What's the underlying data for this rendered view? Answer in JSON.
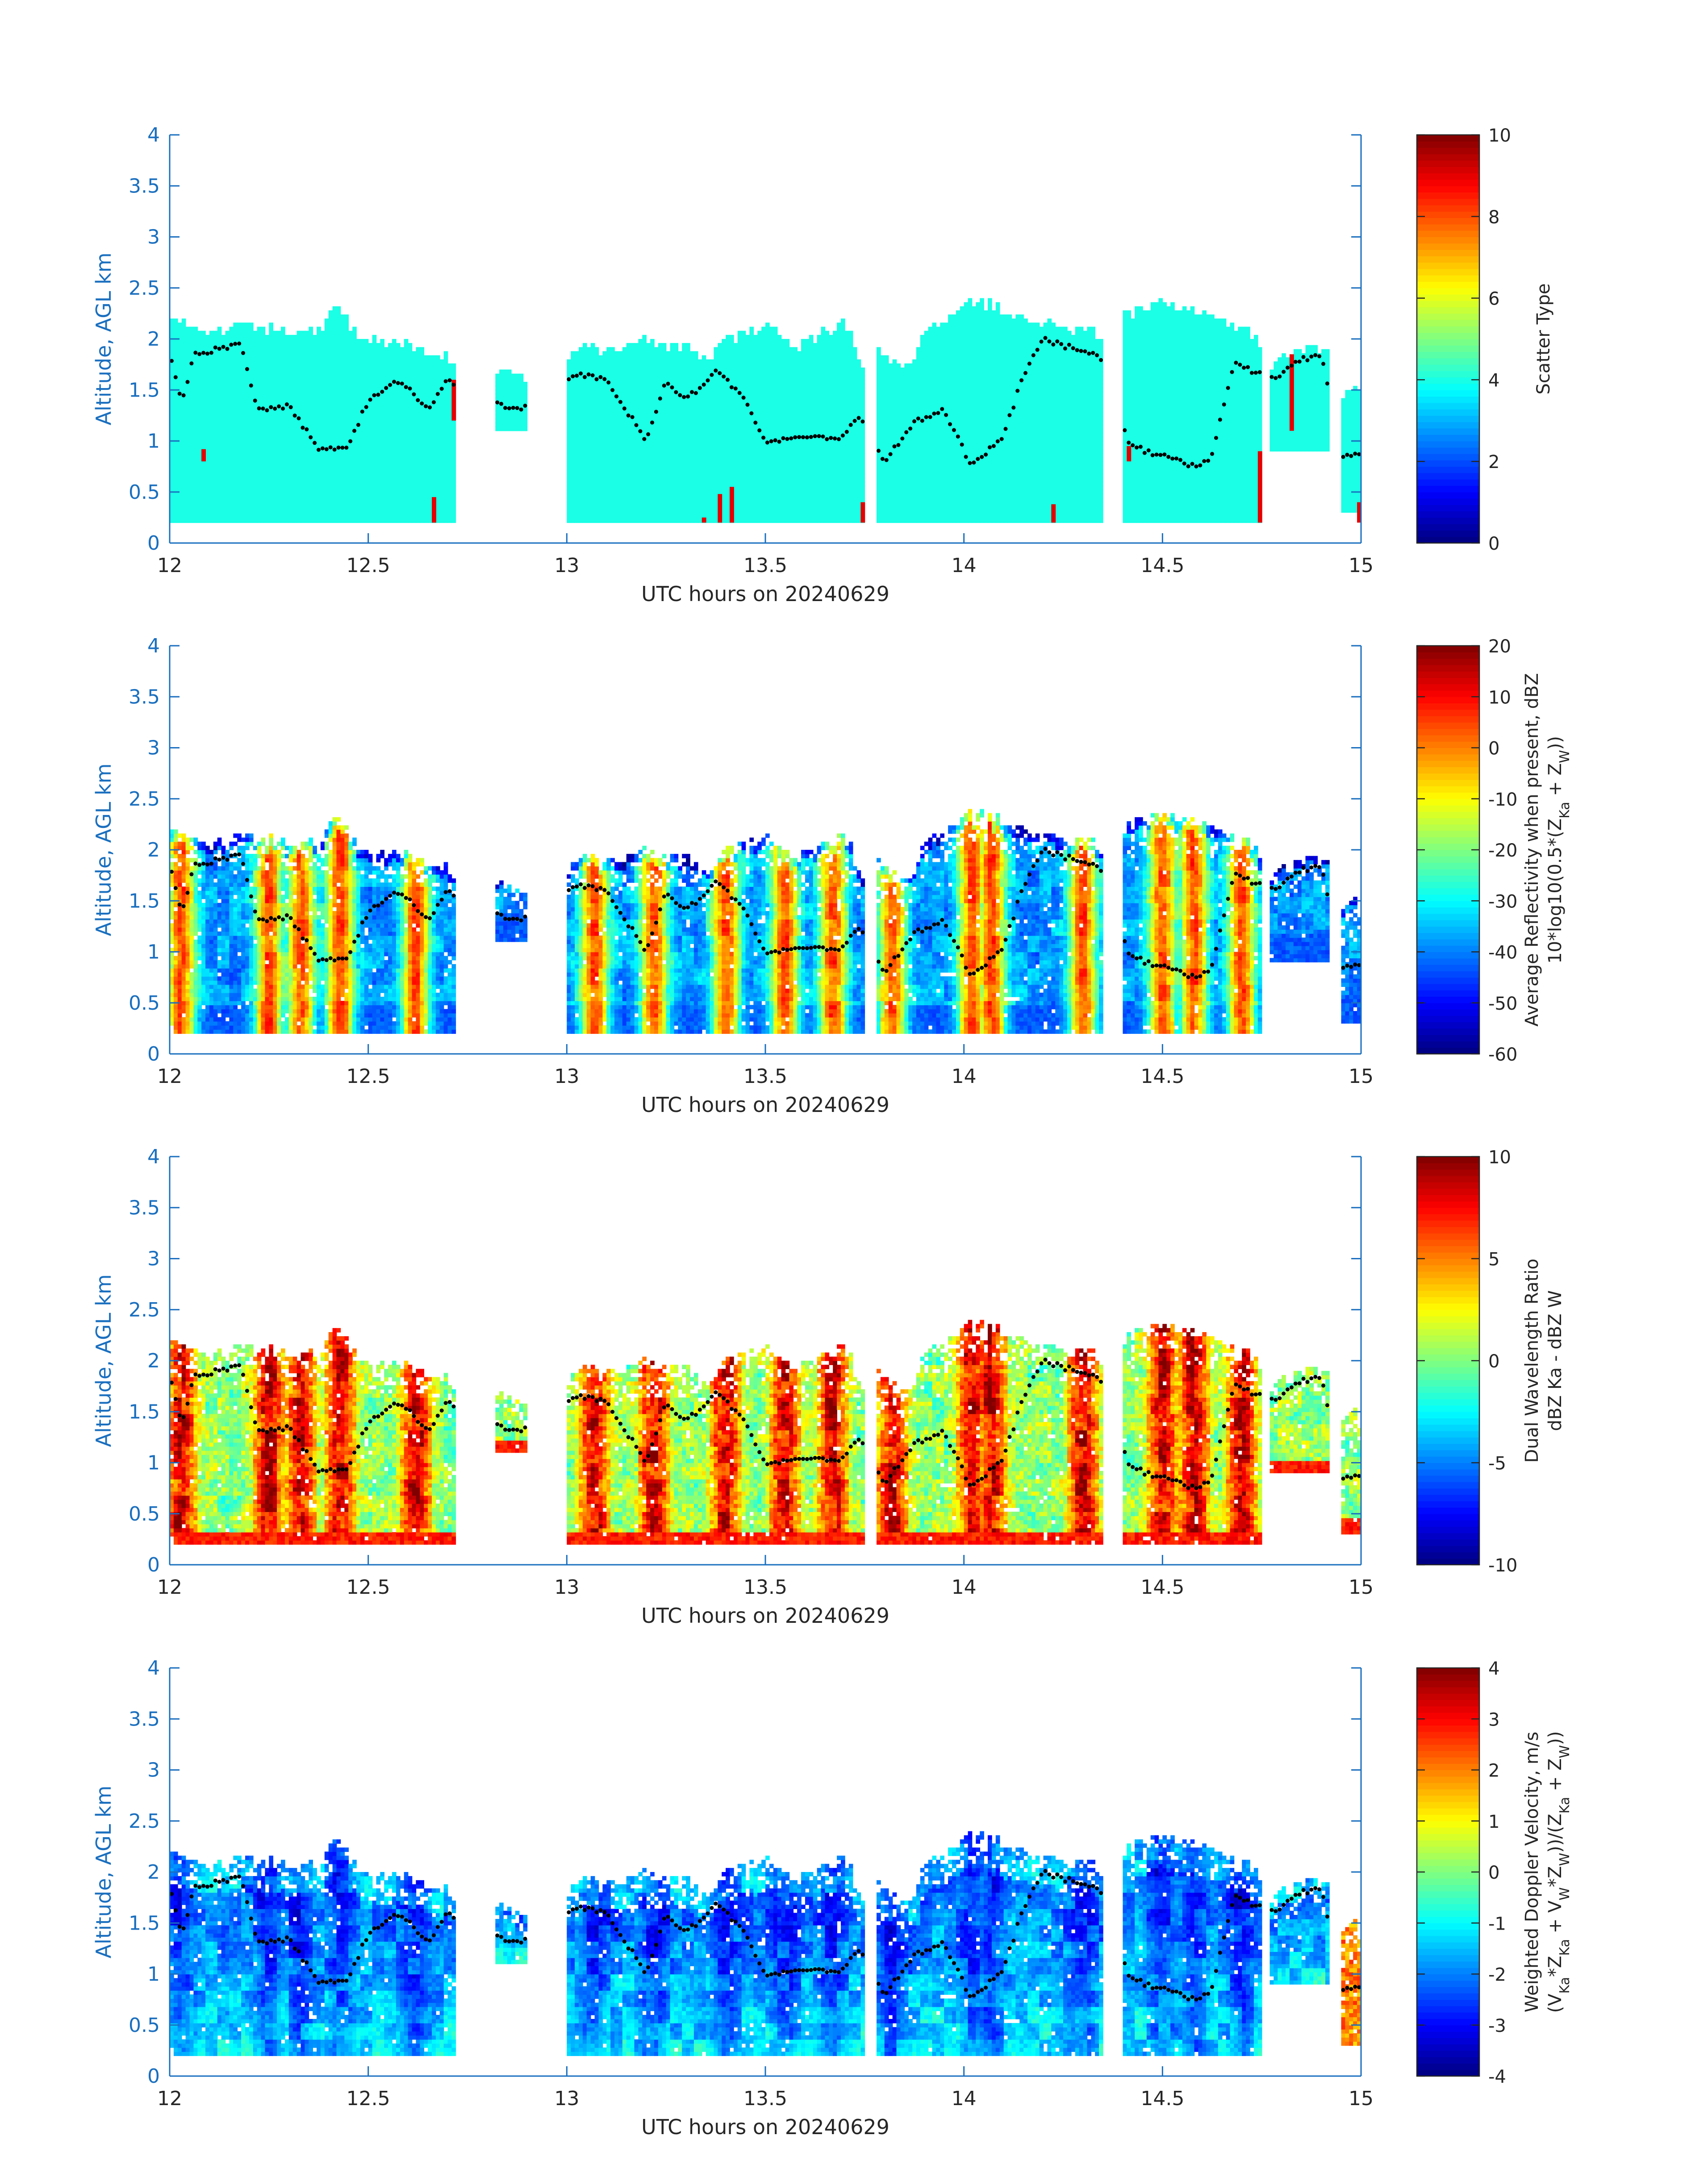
{
  "colors": {
    "axis": "#1a6fbf",
    "label": "#1a6fbf",
    "dark_text": "#262626",
    "colorbar_scheme": "jet",
    "echo_dots": "#000000"
  },
  "chart_data": [
    {
      "type": "heatmap",
      "panel": 1,
      "xlabel": "UTC hours on 20240629",
      "ylabel": "Altitude, AGL km",
      "x_ticks": [
        "12",
        "12.5",
        "13",
        "13.5",
        "14",
        "14.5",
        "15"
      ],
      "y_ticks": [
        "0",
        "0.5",
        "1",
        "1.5",
        "2",
        "2.5",
        "3",
        "3.5",
        "4"
      ],
      "xlim": [
        12,
        15
      ],
      "ylim": [
        0,
        4
      ],
      "colorbar": {
        "label_lines": [
          "Scatter Type"
        ],
        "ticks": [
          "0",
          "2",
          "4",
          "6",
          "8",
          "10"
        ],
        "range": [
          0,
          10
        ]
      },
      "field": "scatter_type",
      "dominant_value": 4,
      "minor_value": 9
    },
    {
      "type": "heatmap",
      "panel": 2,
      "xlabel": "UTC hours on 20240629",
      "ylabel": "Altitude, AGL km",
      "x_ticks": [
        "12",
        "12.5",
        "13",
        "13.5",
        "14",
        "14.5",
        "15"
      ],
      "y_ticks": [
        "0",
        "0.5",
        "1",
        "1.5",
        "2",
        "2.5",
        "3",
        "3.5",
        "4"
      ],
      "xlim": [
        12,
        15
      ],
      "ylim": [
        0,
        4
      ],
      "colorbar": {
        "label_lines": [
          "Average Reflectivity when present, dBZ",
          "10*log10(0.5*(Z_Ka + Z_W))"
        ],
        "ticks": [
          "-60",
          "-50",
          "-40",
          "-30",
          "-20",
          "-10",
          "0",
          "10",
          "20"
        ],
        "range": [
          -60,
          20
        ]
      },
      "field": "avg_reflectivity_dbz"
    },
    {
      "type": "heatmap",
      "panel": 3,
      "xlabel": "UTC hours on 20240629",
      "ylabel": "Altitude, AGL km",
      "x_ticks": [
        "12",
        "12.5",
        "13",
        "13.5",
        "14",
        "14.5",
        "15"
      ],
      "y_ticks": [
        "0",
        "0.5",
        "1",
        "1.5",
        "2",
        "2.5",
        "3",
        "3.5",
        "4"
      ],
      "xlim": [
        12,
        15
      ],
      "ylim": [
        0,
        4
      ],
      "colorbar": {
        "label_lines": [
          "Dual Wavelength Ratio",
          "dBZ Ka - dBZ W"
        ],
        "ticks": [
          "-10",
          "-5",
          "0",
          "5",
          "10"
        ],
        "range": [
          -10,
          10
        ]
      },
      "field": "dual_wavelength_ratio_db"
    },
    {
      "type": "heatmap",
      "panel": 4,
      "xlabel": "UTC hours on 20240629",
      "ylabel": "Altitude, AGL km",
      "x_ticks": [
        "12",
        "12.5",
        "13",
        "13.5",
        "14",
        "14.5",
        "15"
      ],
      "y_ticks": [
        "0",
        "0.5",
        "1",
        "1.5",
        "2",
        "2.5",
        "3",
        "3.5",
        "4"
      ],
      "xlim": [
        12,
        15
      ],
      "ylim": [
        0,
        4
      ],
      "colorbar": {
        "label_lines": [
          "Weighted Doppler Velocity, m/s",
          "(V_Ka*Z_Ka + V_W*Z_W))/(Z_Ka + Z_W))"
        ],
        "ticks": [
          "-4",
          "-3",
          "-2",
          "-1",
          "0",
          "1",
          "2",
          "3",
          "4"
        ],
        "range": [
          -4,
          4
        ]
      },
      "field": "weighted_doppler_velocity_ms"
    }
  ],
  "echo_layer": {
    "segments": [
      {
        "x_start": 12.0,
        "x_end": 12.72,
        "base_km": 0.2
      },
      {
        "x_start": 12.82,
        "x_end": 12.9,
        "base_km": 1.1
      },
      {
        "x_start": 13.0,
        "x_end": 13.75,
        "base_km": 0.2
      },
      {
        "x_start": 13.78,
        "x_end": 14.35,
        "base_km": 0.2
      },
      {
        "x_start": 14.4,
        "x_end": 14.75,
        "base_km": 0.2
      },
      {
        "x_start": 14.77,
        "x_end": 14.92,
        "base_km": 0.9
      },
      {
        "x_start": 14.95,
        "x_end": 15.0,
        "base_km": 0.3
      }
    ],
    "top_km_points": [
      [
        12.0,
        2.25
      ],
      [
        12.05,
        2.1
      ],
      [
        12.1,
        2.0
      ],
      [
        12.15,
        2.1
      ],
      [
        12.2,
        2.1
      ],
      [
        12.3,
        2.05
      ],
      [
        12.38,
        2.1
      ],
      [
        12.42,
        2.3
      ],
      [
        12.48,
        2.0
      ],
      [
        12.55,
        1.95
      ],
      [
        12.62,
        1.9
      ],
      [
        12.7,
        1.8
      ],
      [
        12.72,
        1.7
      ],
      [
        12.82,
        1.7
      ],
      [
        12.9,
        1.6
      ],
      [
        13.0,
        1.8
      ],
      [
        13.05,
        1.9
      ],
      [
        13.12,
        1.85
      ],
      [
        13.2,
        2.0
      ],
      [
        13.28,
        1.9
      ],
      [
        13.35,
        1.8
      ],
      [
        13.42,
        2.0
      ],
      [
        13.5,
        2.1
      ],
      [
        13.58,
        1.9
      ],
      [
        13.65,
        2.05
      ],
      [
        13.7,
        2.15
      ],
      [
        13.75,
        1.7
      ],
      [
        13.78,
        1.9
      ],
      [
        13.85,
        1.7
      ],
      [
        13.92,
        2.1
      ],
      [
        14.0,
        2.35
      ],
      [
        14.08,
        2.3
      ],
      [
        14.15,
        2.2
      ],
      [
        14.25,
        2.1
      ],
      [
        14.35,
        2.0
      ],
      [
        14.4,
        2.2
      ],
      [
        14.48,
        2.35
      ],
      [
        14.55,
        2.3
      ],
      [
        14.62,
        2.2
      ],
      [
        14.7,
        2.1
      ],
      [
        14.75,
        1.9
      ],
      [
        14.77,
        1.7
      ],
      [
        14.85,
        1.9
      ],
      [
        14.92,
        1.9
      ],
      [
        14.95,
        1.4
      ],
      [
        15.0,
        1.5
      ]
    ],
    "dot_altitude_km_points": [
      [
        12.0,
        1.9
      ],
      [
        12.03,
        1.35
      ],
      [
        12.06,
        1.85
      ],
      [
        12.12,
        1.9
      ],
      [
        12.18,
        1.95
      ],
      [
        12.22,
        1.3
      ],
      [
        12.3,
        1.35
      ],
      [
        12.38,
        0.9
      ],
      [
        12.45,
        0.95
      ],
      [
        12.5,
        1.4
      ],
      [
        12.58,
        1.6
      ],
      [
        12.65,
        1.3
      ],
      [
        12.7,
        1.6
      ],
      [
        12.84,
        1.35
      ],
      [
        12.88,
        1.3
      ],
      [
        13.02,
        1.65
      ],
      [
        13.1,
        1.6
      ],
      [
        13.15,
        1.3
      ],
      [
        13.2,
        1.0
      ],
      [
        13.25,
        1.6
      ],
      [
        13.3,
        1.4
      ],
      [
        13.38,
        1.7
      ],
      [
        13.45,
        1.4
      ],
      [
        13.5,
        1.0
      ],
      [
        13.6,
        1.05
      ],
      [
        13.68,
        1.0
      ],
      [
        13.74,
        1.25
      ],
      [
        13.8,
        0.8
      ],
      [
        13.88,
        1.2
      ],
      [
        13.95,
        1.3
      ],
      [
        14.02,
        0.75
      ],
      [
        14.1,
        1.05
      ],
      [
        14.15,
        1.65
      ],
      [
        14.2,
        2.0
      ],
      [
        14.28,
        1.9
      ],
      [
        14.34,
        1.85
      ],
      [
        14.42,
        0.95
      ],
      [
        14.5,
        0.85
      ],
      [
        14.58,
        0.75
      ],
      [
        14.62,
        0.8
      ],
      [
        14.68,
        1.75
      ],
      [
        14.72,
        1.7
      ],
      [
        14.78,
        1.6
      ],
      [
        14.85,
        1.8
      ],
      [
        14.9,
        1.85
      ],
      [
        14.95,
        0.85
      ],
      [
        15.0,
        0.9
      ]
    ]
  }
}
